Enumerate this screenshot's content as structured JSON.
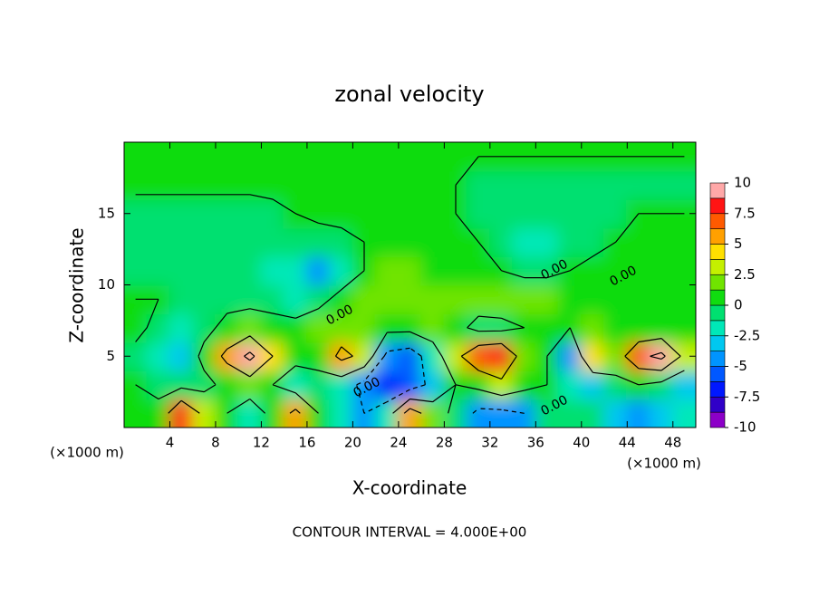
{
  "chart_data": {
    "type": "contour",
    "title": "zonal velocity",
    "x_label": "X-coordinate",
    "y_label": "Z-coordinate",
    "x_unit": "(×1000 m)",
    "y_unit": "(×1000 m)",
    "footer": "CONTOUR INTERVAL = 4.000E+00",
    "contour_interval": 4,
    "contour_labels": [
      "0.00",
      "0.00",
      "0.00",
      "0.00",
      "0.00"
    ],
    "xlim": [
      0,
      50
    ],
    "ylim": [
      0,
      20
    ],
    "xticks": [
      4,
      8,
      12,
      16,
      20,
      24,
      28,
      32,
      36,
      40,
      44,
      48
    ],
    "yticks": [
      5,
      10,
      15
    ],
    "x": [
      1,
      3,
      5,
      7,
      9,
      11,
      13,
      15,
      17,
      19,
      21,
      23,
      25,
      27,
      29,
      31,
      33,
      35,
      37,
      39,
      41,
      43,
      45,
      47,
      49
    ],
    "z": [
      1,
      3,
      5,
      7,
      9,
      11,
      13,
      15,
      17,
      19
    ],
    "values": [
      [
        0,
        1,
        8,
        3,
        0,
        -2,
        1,
        5,
        0,
        -2,
        -4,
        -2,
        6,
        2,
        -1,
        -5,
        -5,
        -4,
        -1,
        -1,
        -1,
        -3,
        -4,
        -3,
        -2
      ],
      [
        0,
        -1,
        -1,
        -1,
        1,
        2,
        0,
        -2,
        -1,
        -2,
        -5,
        -7,
        -6,
        -3,
        0,
        1,
        3,
        1,
        0,
        -2,
        -3,
        -1,
        0,
        -1,
        -3
      ],
      [
        -1,
        -2,
        -3,
        1,
        5,
        9,
        4,
        1,
        1,
        5,
        3,
        -5,
        -6,
        -2,
        3,
        7,
        8,
        2,
        0,
        -4,
        4,
        2,
        7,
        9,
        3
      ],
      [
        1,
        -1,
        -2,
        -1,
        1,
        2,
        1,
        1,
        2,
        2,
        2,
        1,
        1,
        2,
        1,
        -1,
        -1,
        0,
        0,
        0,
        2,
        1,
        1,
        1,
        1
      ],
      [
        0,
        0,
        -1,
        -1,
        -1,
        -1,
        -1,
        -2,
        -1,
        1,
        1.5,
        2,
        2,
        1.5,
        1.5,
        1.5,
        2,
        1.5,
        1.5,
        1,
        1,
        1,
        1,
        0.5,
        0.5
      ],
      [
        -0.5,
        -0.5,
        -0.5,
        -1,
        -1,
        -1,
        -1.5,
        -2,
        -4,
        -2,
        0,
        1.5,
        1.5,
        1,
        1,
        0.5,
        0,
        -0.5,
        -0.5,
        0,
        0.5,
        0.5,
        0,
        0,
        0
      ],
      [
        -1,
        -1,
        -1,
        -1,
        -1,
        -1,
        -1,
        -1,
        -1,
        -0.5,
        0,
        0.5,
        0.5,
        0.5,
        0.5,
        0,
        -0.5,
        -1.5,
        -1.5,
        -1,
        -0.5,
        0,
        0,
        0,
        0
      ],
      [
        -1,
        -1,
        -1,
        -1,
        -1,
        -1,
        -0.5,
        0,
        0.5,
        0.5,
        0.5,
        0.5,
        0.5,
        0,
        0,
        -0.5,
        -0.5,
        -1,
        -1,
        -1,
        -0.5,
        -0.5,
        0,
        0,
        0
      ],
      [
        0.5,
        0.5,
        0.5,
        0.5,
        0.5,
        0.5,
        0.5,
        0.5,
        0.5,
        0.5,
        0,
        0,
        0,
        0,
        0,
        -0.5,
        -0.5,
        -0.5,
        -0.5,
        -0.5,
        -0.5,
        -0.5,
        -0.5,
        -0.5,
        -0.5
      ],
      [
        0.5,
        0.5,
        0.5,
        0.5,
        0.5,
        0.5,
        0.5,
        0,
        0,
        0,
        0,
        0,
        0,
        0,
        0,
        0,
        0,
        0,
        0,
        0,
        0,
        0,
        0,
        0,
        0
      ]
    ],
    "colorbar": {
      "lim": [
        -10,
        10
      ],
      "ticks": [
        10,
        7.5,
        5,
        2.5,
        0,
        -2.5,
        -5,
        -7.5,
        -10
      ],
      "colors": [
        "#8c00c8",
        "#3000c8",
        "#0018ff",
        "#0058ff",
        "#0094ff",
        "#00c8f0",
        "#00e8b8",
        "#00e070",
        "#10dc10",
        "#70e400",
        "#c4f000",
        "#ffe000",
        "#ffa000",
        "#ff5a00",
        "#ff1414",
        "#ffa8a8"
      ]
    }
  }
}
